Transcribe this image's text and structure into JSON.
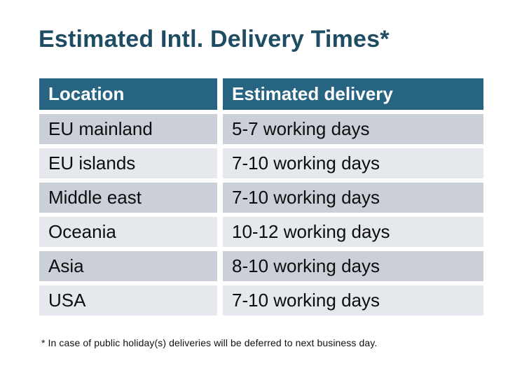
{
  "title": "Estimated Intl. Delivery Times*",
  "table": {
    "headers": {
      "location": "Location",
      "delivery": "Estimated delivery"
    },
    "rows": [
      {
        "location": "EU mainland",
        "delivery": "5-7 working days"
      },
      {
        "location": "EU islands",
        "delivery": "7-10 working days"
      },
      {
        "location": "Middle east",
        "delivery": "7-10 working days"
      },
      {
        "location": "Oceania",
        "delivery": "10-12 working days"
      },
      {
        "location": "Asia",
        "delivery": "8-10 working days"
      },
      {
        "location": "USA",
        "delivery": "7-10 working days"
      }
    ]
  },
  "footnote": "* In case of public holiday(s) deliveries will be deferred to next business day.",
  "colors": {
    "title_text": "#1D4C63",
    "header_bg": "#266482",
    "header_text": "#FFFFFF",
    "row_dark": "#CBD0D8",
    "row_light": "#E5E8EC",
    "cell_text": "#0D0D0D"
  }
}
